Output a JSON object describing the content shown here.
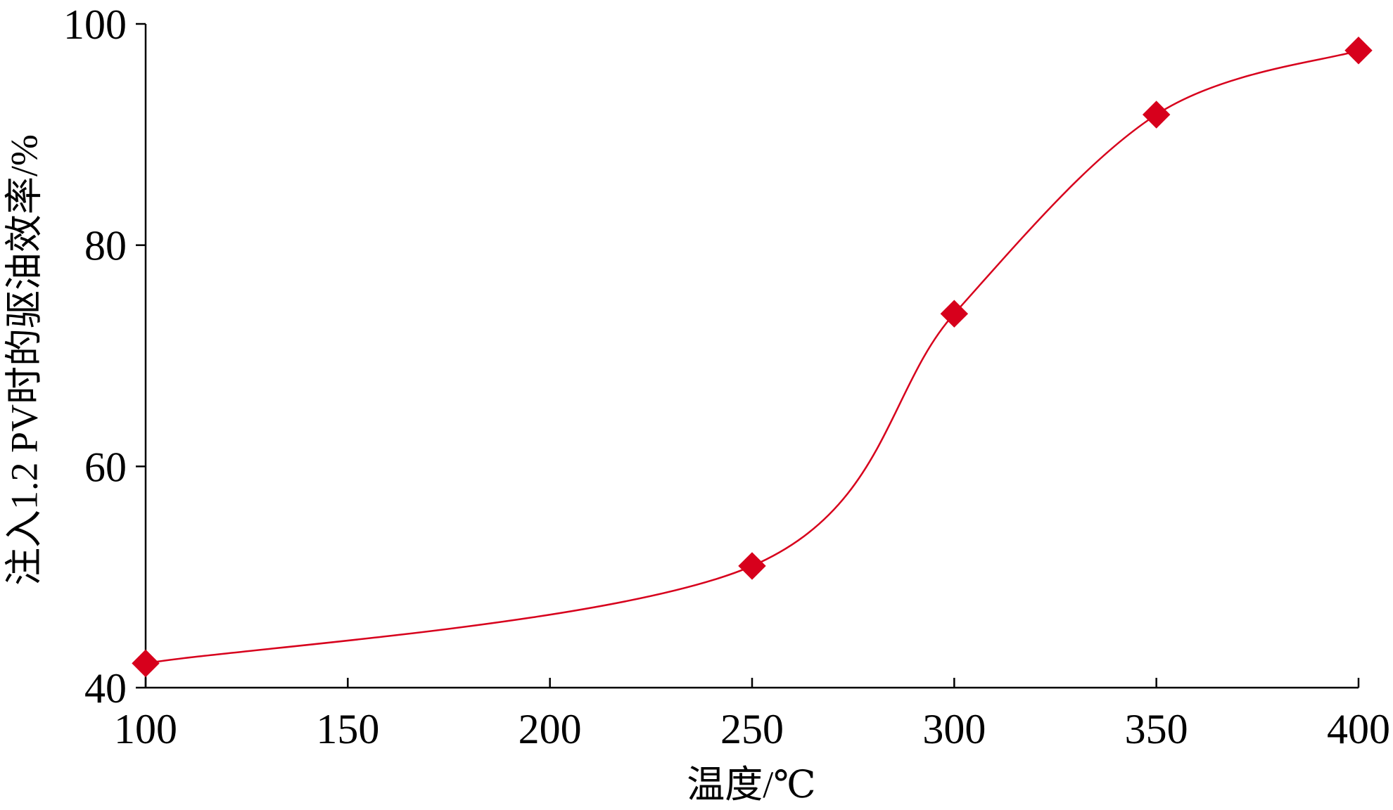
{
  "chart_data": {
    "type": "line",
    "title": "",
    "xlabel": "温度/℃",
    "ylabel": "注入1.2 PV时的驱油效率/%",
    "xlim": [
      100,
      400
    ],
    "ylim": [
      40,
      100
    ],
    "xticks": [
      100,
      150,
      200,
      250,
      300,
      350,
      400
    ],
    "yticks": [
      40,
      60,
      80,
      100
    ],
    "x": [
      100,
      250,
      300,
      350,
      400
    ],
    "series": [
      {
        "values": [
          42.2,
          51.0,
          73.8,
          91.8,
          97.6
        ],
        "color": "#d7001c",
        "marker": "diamond",
        "smooth": true
      }
    ],
    "grid": false,
    "legend": "none"
  }
}
